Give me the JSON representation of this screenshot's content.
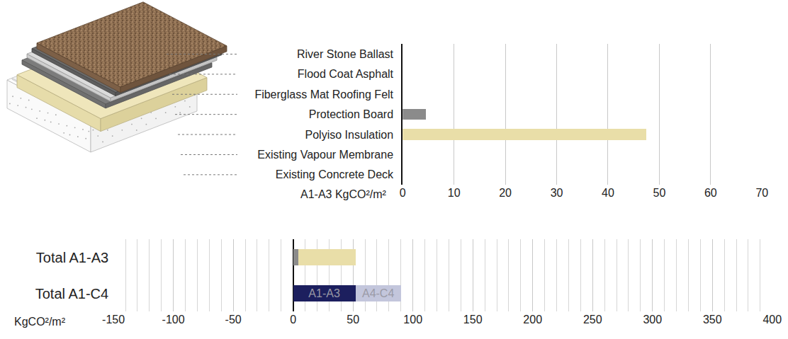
{
  "chart_data": [
    {
      "type": "bar",
      "orientation": "horizontal",
      "categories": [
        "River Stone Ballast",
        "Flood Coat Asphalt",
        "Fiberglass Mat Roofing Felt",
        "Protection Board",
        "Polyiso Insulation",
        "Existing Vapour Membrane",
        "Existing Concrete Deck"
      ],
      "values": [
        0,
        0,
        0,
        4.5,
        47.5,
        0,
        0
      ],
      "colors": [
        "#8a6a4c",
        "#5f5f5f",
        "#d8d8d8",
        "#8b8b8b",
        "#e9dea8",
        "#eeeeee",
        "#eeeeee"
      ],
      "x_label": "A1-A3 KgCO²/m²",
      "xlim": [
        0,
        70
      ],
      "xticks": [
        0,
        10,
        20,
        30,
        40,
        50,
        60,
        70
      ],
      "grid": true
    },
    {
      "type": "bar",
      "orientation": "horizontal",
      "stacked": true,
      "categories": [
        "Total A1-A3",
        "Total A1-C4"
      ],
      "series": [
        {
          "values": [
            4.5,
            null
          ],
          "color": "#8b8b8b"
        },
        {
          "values": [
            47.5,
            null
          ],
          "color": "#e9dea8"
        },
        {
          "name": "A1-A3",
          "values": [
            null,
            52
          ],
          "color": "#1c1f5e"
        },
        {
          "name": "A4-C4",
          "values": [
            null,
            38
          ],
          "color": "#c3c6dc"
        }
      ],
      "x_label": "KgCO²/m²",
      "xlim": [
        -150,
        400
      ],
      "xticks": [
        -150,
        -100,
        -50,
        0,
        50,
        100,
        150,
        200,
        250,
        300,
        350,
        400
      ],
      "grid": true
    }
  ]
}
